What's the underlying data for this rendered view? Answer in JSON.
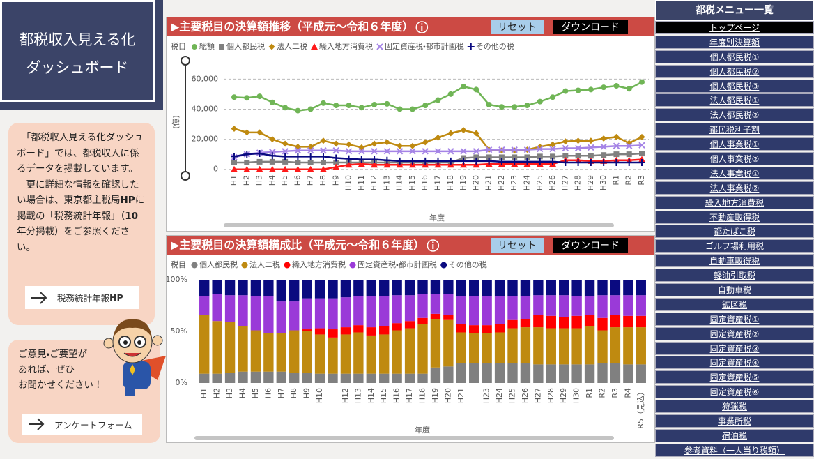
{
  "header": {
    "title_lines": [
      "都税収入見える化",
      "ダッシュボード"
    ]
  },
  "description": {
    "paragraph1": "　「都税収入見える化ダッシュボード」では、都税収入に係るデータを掲載しています。",
    "paragraph2": [
      "　更に詳細な情報を確認したい場合は、東京都主税局",
      "HP",
      "に掲載の「税務統計年報」（",
      "10",
      "年分掲載）をご参照ください。"
    ],
    "button": [
      "税務統計年報",
      "HP"
    ]
  },
  "feedback": {
    "lines": [
      "ご意見・ご要望が",
      "あれば、ぜひ",
      "お聞かせください！"
    ],
    "button": "アンケートフォーム"
  },
  "menu": {
    "title": "都税メニュー一覧",
    "items": [
      "トップページ",
      "年度別決算額",
      "個人都民税①",
      "個人都民税②",
      "個人都民税③",
      "法人都民税①",
      "法人都民税②",
      "都民税利子割",
      "個人事業税①",
      "個人事業税②",
      "法人事業税①",
      "法人事業税②",
      "繰入地方消費税",
      "不動産取得税",
      "都たばこ税",
      "ゴルフ場利用税",
      "自動車取得税",
      "軽油引取税",
      "自動車税",
      "鉱区税",
      "固定資産税①",
      "固定資産税②",
      "固定資産税③",
      "固定資産税④",
      "固定資産税⑤",
      "固定資産税⑥",
      "狩猟税",
      "事業所税",
      "宿泊税",
      "参考資料（一人当り税額）"
    ]
  },
  "chart_data": [
    {
      "type": "line",
      "title": "▶主要税目の決算額推移（平成元～令和６年度）",
      "buttons": [
        "リセット",
        "ダウンロード"
      ],
      "legend_title": "税目",
      "x_label": "年度",
      "y_label": "(億)",
      "categories": [
        "H1",
        "H2",
        "H3",
        "H4",
        "H5",
        "H6",
        "H7",
        "H8",
        "H9",
        "H10",
        "H11",
        "H12",
        "H13",
        "H14",
        "H15",
        "H16",
        "H17",
        "H18",
        "H19",
        "H20",
        "H21",
        "H22",
        "H23",
        "H24",
        "H25",
        "H26",
        "H27",
        "H28",
        "H29",
        "H30",
        "R1",
        "R2",
        "R3"
      ],
      "ylim": [
        -2000,
        62000
      ],
      "yticks": [
        0,
        {
          "value": 20000,
          "label": "20,000"
        },
        {
          "value": 40000,
          "label": "40,000"
        },
        {
          "value": 60000,
          "label": "60,000"
        }
      ],
      "grid": true,
      "series": [
        {
          "name": "総額",
          "color": "#70b556",
          "marker": "circle",
          "values": [
            48000,
            47500,
            48500,
            44500,
            41000,
            39000,
            40000,
            44000,
            42500,
            42500,
            41000,
            43000,
            43500,
            40000,
            40000,
            42500,
            46000,
            50000,
            55000,
            53000,
            43000,
            41500,
            41500,
            42500,
            45000,
            48000,
            52000,
            52500,
            53000,
            54500,
            55500,
            53500,
            58000
          ]
        },
        {
          "name": "個人都民税",
          "color": "#808080",
          "marker": "square",
          "values": [
            4500,
            4500,
            5000,
            5000,
            5000,
            4500,
            4500,
            4500,
            4500,
            4500,
            4500,
            4500,
            4500,
            4500,
            4500,
            4500,
            4500,
            4500,
            7500,
            8000,
            8000,
            8000,
            8000,
            8000,
            8500,
            8500,
            9000,
            9000,
            9000,
            9500,
            10000,
            10000,
            10500
          ]
        },
        {
          "name": "法人二税",
          "color": "#bf8a10",
          "marker": "diamond",
          "values": [
            27000,
            24500,
            24500,
            20000,
            17000,
            15000,
            15000,
            19000,
            17000,
            16500,
            14500,
            17000,
            18000,
            15500,
            15500,
            18000,
            21000,
            24000,
            26000,
            24000,
            13000,
            12500,
            12500,
            13000,
            15000,
            16500,
            18500,
            19000,
            19000,
            20500,
            21500,
            17500,
            21500
          ]
        },
        {
          "name": "繰入地方消費税",
          "color": "#ff1a1a",
          "marker": "triangle",
          "values": [
            0,
            0,
            0,
            0,
            0,
            0,
            0,
            0,
            1500,
            3000,
            3500,
            3000,
            3000,
            3000,
            3000,
            3000,
            3000,
            3000,
            3000,
            3000,
            3500,
            3500,
            3500,
            3500,
            3500,
            3500,
            6000,
            6000,
            5500,
            5500,
            6000,
            6000,
            6500
          ]
        },
        {
          "name": "固定資産税・都市計画税",
          "color": "#a584e6",
          "marker": "x",
          "values": [
            8000,
            10000,
            11000,
            11500,
            12000,
            12500,
            12500,
            12500,
            12500,
            12000,
            12000,
            12000,
            12000,
            12000,
            12000,
            12000,
            12000,
            12000,
            12000,
            12000,
            13000,
            13000,
            13000,
            13000,
            13500,
            13500,
            14000,
            14000,
            14500,
            15000,
            15500,
            15500,
            16000
          ]
        },
        {
          "name": "その他の税",
          "color": "#0a0a80",
          "marker": "plus",
          "values": [
            8500,
            10000,
            10500,
            9000,
            8500,
            8500,
            8500,
            8500,
            7500,
            7000,
            6500,
            6500,
            6000,
            5500,
            5500,
            5500,
            5500,
            5500,
            5500,
            5500,
            5500,
            5000,
            5000,
            5000,
            5000,
            5000,
            4500,
            4500,
            4500,
            4500,
            4500,
            4500,
            4500
          ]
        }
      ]
    },
    {
      "type": "stacked_bar",
      "title": "▶主要税目の決算額構成比（平成元～令和６年度）",
      "buttons": [
        "リセット",
        "ダウンロード"
      ],
      "legend_title": "税目",
      "x_label": "年度",
      "categories": [
        "H1",
        "H2",
        "H3",
        "H4",
        "H5",
        "H6",
        "H7",
        "H8",
        "H9",
        "H10",
        null,
        "H12",
        "H13",
        "H14",
        "H15",
        "H16",
        "H17",
        "H18",
        "H19",
        "H20",
        "H21",
        null,
        "H23",
        "H24",
        "H25",
        "H26",
        "H27",
        "H28",
        "H29",
        "H30",
        "R1",
        "R2",
        "R3",
        "R4",
        "R5（見込）"
      ],
      "ylim": [
        0,
        100
      ],
      "yticks": [
        {
          "value": 0,
          "label": "0%"
        },
        {
          "value": 50,
          "label": "50%"
        },
        {
          "value": 100,
          "label": "100%"
        }
      ],
      "series": [
        {
          "name": "個人都民税",
          "color": "#808080",
          "values": [
            9,
            9,
            10,
            11,
            11,
            11,
            11,
            10,
            10,
            9,
            9,
            9,
            9,
            9,
            9,
            9,
            9,
            9,
            15,
            16,
            19,
            19,
            19,
            19,
            19,
            19,
            18,
            18,
            18,
            18,
            18,
            19,
            19,
            18,
            18
          ]
        },
        {
          "name": "法人二税",
          "color": "#bf8a10",
          "values": [
            57,
            51,
            49,
            44,
            40,
            37,
            37,
            41,
            40,
            38,
            35,
            38,
            40,
            37,
            38,
            42,
            44,
            48,
            47,
            45,
            30,
            29,
            29,
            30,
            34,
            35,
            36,
            35,
            35,
            35,
            37,
            32,
            35,
            36,
            36
          ]
        },
        {
          "name": "繰入地方消費税",
          "color": "#ff0000",
          "values": [
            0,
            0,
            0,
            0,
            0,
            0,
            0,
            0,
            2,
            6,
            8,
            7,
            7,
            8,
            8,
            7,
            7,
            6,
            5,
            5,
            8,
            8,
            8,
            8,
            8,
            8,
            12,
            12,
            11,
            12,
            11,
            12,
            12,
            11,
            11
          ]
        },
        {
          "name": "固定資産税・都市計画税",
          "color": "#9a3ad8",
          "values": [
            18,
            26,
            26,
            30,
            33,
            36,
            31,
            28,
            30,
            29,
            30,
            29,
            28,
            30,
            29,
            27,
            25,
            23,
            19,
            20,
            27,
            28,
            28,
            27,
            23,
            22,
            19,
            20,
            21,
            19,
            18,
            22,
            19,
            20,
            20
          ]
        },
        {
          "name": "その他の税",
          "color": "#0a0a80",
          "values": [
            16,
            14,
            15,
            15,
            16,
            16,
            21,
            21,
            18,
            18,
            18,
            17,
            16,
            16,
            16,
            15,
            15,
            14,
            14,
            14,
            16,
            16,
            16,
            16,
            16,
            16,
            15,
            15,
            15,
            16,
            16,
            15,
            15,
            15,
            15
          ]
        }
      ]
    }
  ]
}
